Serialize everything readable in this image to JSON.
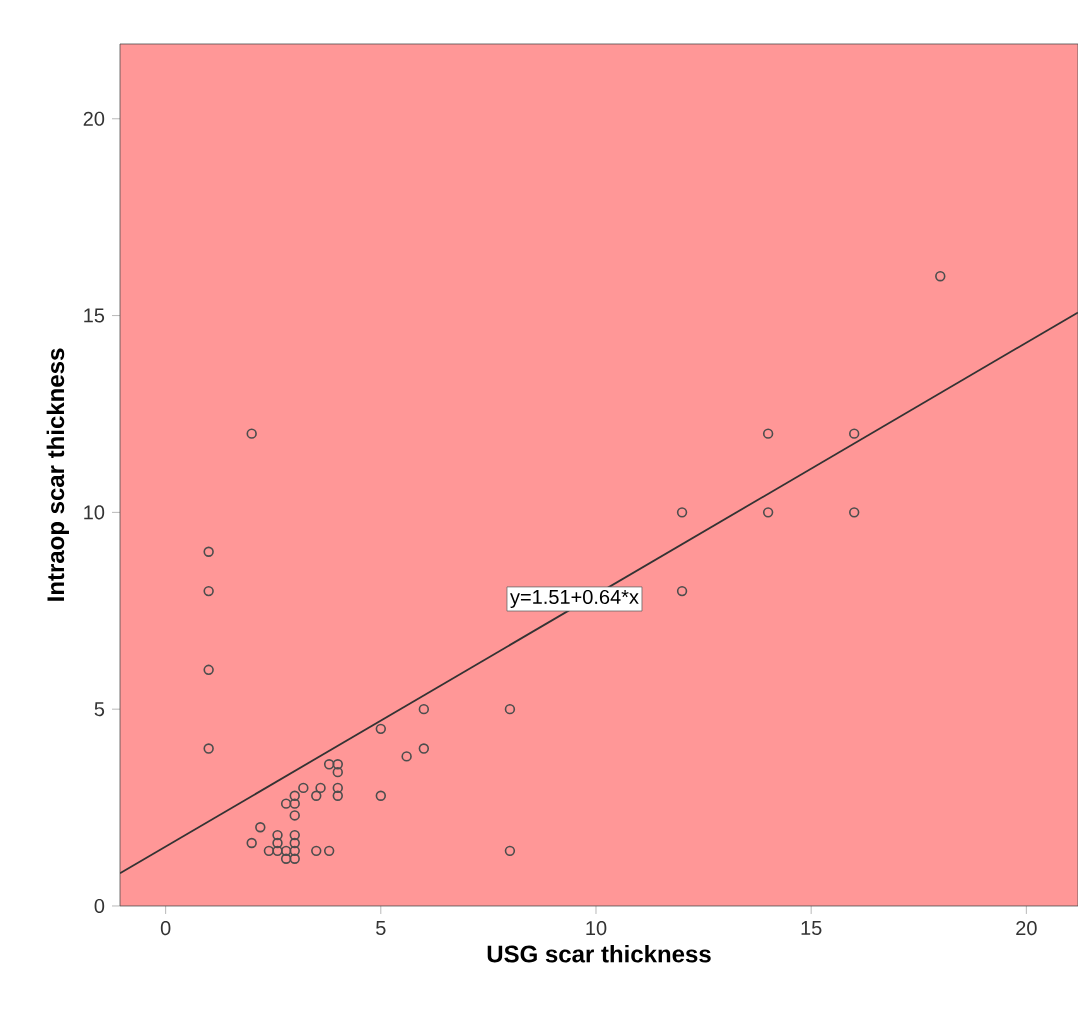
{
  "chart_data": {
    "type": "scatter",
    "xlabel": "USG scar thickness",
    "ylabel": "Intraop scar thickness",
    "xlim": [
      -1.06,
      21.2
    ],
    "ylim": [
      0,
      21.9
    ],
    "xticks": [
      0,
      5,
      10,
      15,
      20
    ],
    "yticks": [
      0,
      5,
      10,
      15,
      20
    ],
    "grid": false,
    "annotations": [
      {
        "text": "y=1.51+0.64*x",
        "x": 9.5,
        "y": 7.8
      }
    ],
    "series": [
      {
        "marker": "circle",
        "color": "#4d4d4d",
        "x": [
          1,
          1,
          1,
          1,
          2,
          12,
          12,
          14,
          14,
          16,
          16,
          18,
          8,
          8,
          6,
          6,
          5,
          5.6,
          5,
          4,
          4,
          3.8,
          4,
          4,
          3.6,
          3.5,
          3.2,
          3,
          3,
          3,
          2.8,
          3.8,
          3.5,
          3,
          3,
          3,
          2.8,
          2.8,
          2.6,
          2.6,
          2.4,
          2.2,
          2,
          3,
          2.6
        ],
        "values": [
          9,
          8,
          6,
          4,
          12,
          10,
          8,
          12,
          10,
          12,
          10,
          16,
          5,
          1.4,
          5,
          4,
          4.5,
          3.8,
          2.8,
          3.6,
          3.4,
          3.6,
          3,
          2.8,
          3,
          2.8,
          3,
          2.8,
          2.6,
          2.3,
          2.6,
          1.4,
          1.4,
          1.6,
          1.4,
          1.2,
          1.2,
          1.4,
          1.4,
          1.6,
          1.4,
          2,
          1.6,
          1.8,
          1.8
        ]
      },
      {
        "type": "line",
        "marker": "none",
        "color": "#333333",
        "x": [
          -1.06,
          21.2
        ],
        "values": [
          0.83,
          15.08
        ]
      }
    ]
  }
}
